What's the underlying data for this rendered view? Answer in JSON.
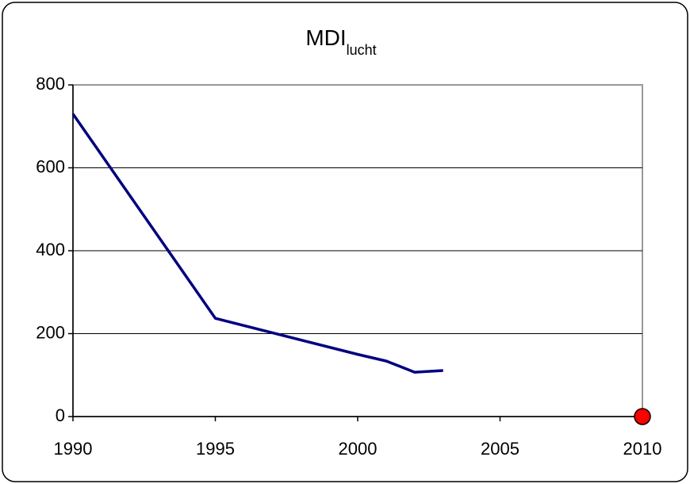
{
  "chart_data": {
    "type": "line",
    "title": "MDI",
    "title_subscript": "lucht",
    "series": [
      {
        "color": "#000080",
        "x": [
          1990,
          1995,
          2000,
          2001,
          2002,
          2003
        ],
        "values": [
          730,
          237,
          150,
          134,
          107,
          111
        ]
      },
      {
        "type": "marker",
        "color": "#ff0000",
        "x": [
          2010
        ],
        "values": [
          0
        ]
      }
    ],
    "xlim": [
      1990,
      2010
    ],
    "xticks": [
      1990,
      1995,
      2000,
      2005,
      2010
    ],
    "ylim": [
      0,
      800
    ],
    "yticks": [
      0,
      200,
      400,
      600,
      800
    ],
    "grid": true
  }
}
